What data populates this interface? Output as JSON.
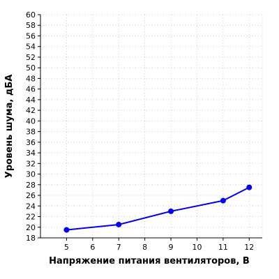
{
  "chart_data": {
    "type": "line",
    "title": "",
    "xlabel": "Напряжение питания вентиляторов, В",
    "ylabel": "Уровень шума, дБА",
    "xlim": [
      4,
      12.5
    ],
    "ylim": [
      18,
      60
    ],
    "x_ticks": [
      5,
      6,
      7,
      8,
      9,
      10,
      11,
      12
    ],
    "y_ticks": [
      18,
      20,
      22,
      24,
      26,
      28,
      30,
      32,
      34,
      36,
      38,
      40,
      42,
      44,
      46,
      48,
      50,
      52,
      54,
      56,
      58,
      60
    ],
    "grid": true,
    "series": [
      {
        "color": "#0000ee",
        "x": [
          5,
          7,
          9,
          11,
          12
        ],
        "y": [
          19.5,
          20.5,
          23,
          25,
          27.5
        ]
      }
    ]
  }
}
